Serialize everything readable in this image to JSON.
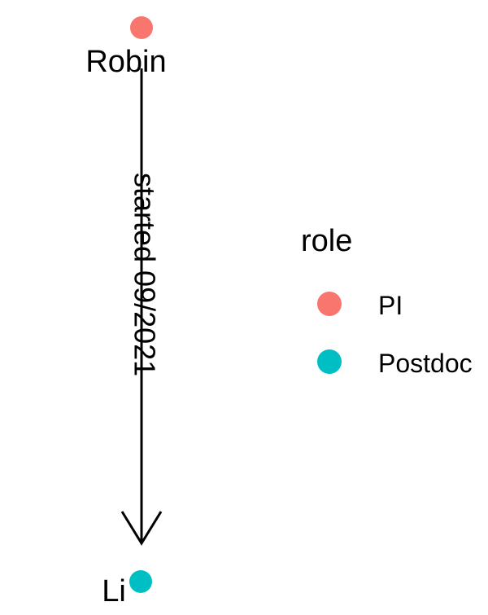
{
  "nodes": [
    {
      "id": "robin",
      "label": "Robin",
      "role": "PI"
    },
    {
      "id": "li",
      "label": "Li",
      "role": "Postdoc"
    }
  ],
  "edges": [
    {
      "from": "robin",
      "to": "li",
      "label": "started 09/2021"
    }
  ],
  "legend": {
    "title": "role",
    "items": [
      {
        "label": "PI",
        "color": "#F8766D"
      },
      {
        "label": "Postdoc",
        "color": "#00BFC4"
      }
    ]
  },
  "colors": {
    "PI": "#F8766D",
    "Postdoc": "#00BFC4",
    "edge": "#000000"
  }
}
